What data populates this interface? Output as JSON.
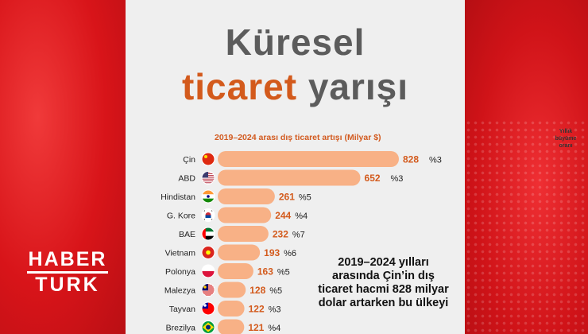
{
  "title_line1": "Küresel",
  "title_line2_accent": "ticaret",
  "title_line2_rest": "yarışı",
  "logo": {
    "line1": "HABER",
    "line2": "TURK"
  },
  "note": "2019–2024 yılları arasında Çin’in dış ticaret hacmi 828 milyar dolar artarken bu ülkeyi",
  "colors": {
    "bar": "#f8b186",
    "value": "#d35a1c",
    "card": "#efefef",
    "background": "#e0161c"
  },
  "chart_data": {
    "type": "bar",
    "orientation": "horizontal",
    "title": "2019–2024 arası dış ticaret artışı  (Milyar $)",
    "growth_header": [
      "Yıllık",
      "büyüme",
      "oranı"
    ],
    "categories": [
      "Çin",
      "ABD",
      "Hindistan",
      "G. Kore",
      "BAE",
      "Vietnam",
      "Polonya",
      "Malezya",
      "Tayvan",
      "Brezilya"
    ],
    "values": [
      828,
      652,
      261,
      244,
      232,
      193,
      163,
      128,
      122,
      121
    ],
    "growth": [
      "%3",
      "%3",
      "%5",
      "%4",
      "%7",
      "%6",
      "%5",
      "%5",
      "%3",
      "%4"
    ],
    "flags": [
      "china-flag",
      "usa-flag",
      "india-flag",
      "south-korea-flag",
      "uae-flag",
      "vietnam-flag",
      "poland-flag",
      "malaysia-flag",
      "taiwan-flag",
      "brazil-flag"
    ],
    "xlim": [
      0,
      828
    ],
    "grid": false,
    "legend": "none"
  }
}
